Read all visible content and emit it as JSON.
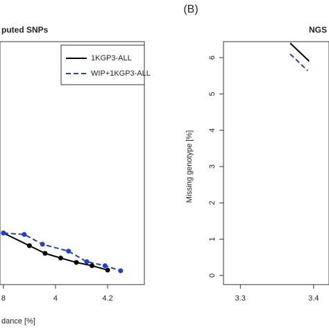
{
  "chart_data": [
    {
      "type": "line",
      "title": "puted SNPs",
      "xlabel": "dance [%]",
      "xlim": [
        3.787,
        4.341
      ],
      "ylim": [
        -0.25,
        6.44
      ],
      "xticks": [
        {
          "value": 3.8,
          "label": "8"
        },
        4.0,
        4.2
      ],
      "legend": "top-right",
      "series": [
        {
          "name": "1KGP3-ALL",
          "color": "#000000",
          "dash": false,
          "x": [
            3.8,
            3.9,
            3.96,
            4.02,
            4.08,
            4.14,
            4.2
          ],
          "values": [
            1.17,
            0.82,
            0.61,
            0.48,
            0.36,
            0.27,
            0.15
          ]
        },
        {
          "name": "WIP+1KGP3-ALL",
          "color": "#1f3fd1",
          "dash": true,
          "x": [
            3.8,
            3.88,
            3.95,
            4.05,
            4.12,
            4.19,
            4.25
          ],
          "values": [
            1.17,
            1.13,
            0.86,
            0.67,
            0.38,
            0.27,
            0.13
          ]
        }
      ]
    },
    {
      "type": "line",
      "panel_label": "(B)",
      "title": "NGS",
      "ylabel": "Missing genotype [%]",
      "xlim": [
        3.277,
        3.421
      ],
      "ylim": [
        -0.25,
        6.44
      ],
      "xticks": [
        3.3,
        3.4
      ],
      "yticks": [
        0,
        1,
        2,
        3,
        4,
        5,
        6
      ],
      "series": [
        {
          "color": "#000000",
          "dash": false,
          "x": [
            3.368,
            3.394
          ],
          "values": [
            6.4,
            5.9
          ]
        },
        {
          "color": "#1f3fd1",
          "dash": true,
          "x": [
            3.368,
            3.392
          ],
          "values": [
            6.1,
            5.64
          ]
        }
      ]
    }
  ]
}
